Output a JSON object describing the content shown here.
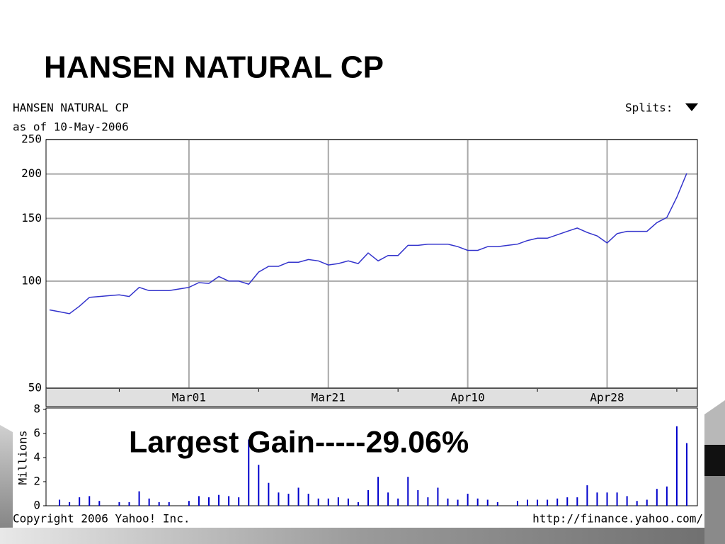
{
  "slide": {
    "title": "HANSEN NATURAL CP",
    "annotation": "Largest Gain-----29.06%"
  },
  "chart_header": {
    "name": "HANSEN NATURAL CP",
    "as_of": "as of 10-May-2006",
    "splits": "Splits:"
  },
  "footer": {
    "copyright": "Copyright 2006 Yahoo! Inc.",
    "url": "http://finance.yahoo.com/"
  },
  "chart_data": [
    {
      "type": "line",
      "categories": [
        null,
        null,
        null,
        null,
        null,
        null,
        null,
        null,
        null,
        null,
        null,
        null,
        null,
        null,
        "Mar01",
        null,
        null,
        null,
        null,
        null,
        null,
        null,
        null,
        null,
        null,
        null,
        null,
        null,
        "Mar21",
        null,
        null,
        null,
        null,
        null,
        null,
        null,
        null,
        null,
        null,
        null,
        null,
        null,
        "Apr10",
        null,
        null,
        null,
        null,
        null,
        null,
        null,
        null,
        null,
        null,
        null,
        null,
        null,
        "Apr28",
        null,
        null,
        null,
        null,
        null,
        null,
        null,
        null
      ],
      "values": [
        83,
        82,
        81,
        85,
        90,
        90.5,
        91,
        91.5,
        90.5,
        96,
        94,
        94,
        94,
        95,
        96,
        99,
        98.5,
        103,
        100,
        100,
        98,
        106,
        110,
        110,
        113,
        113,
        115,
        114,
        111,
        112,
        114,
        112,
        120,
        114,
        118,
        118,
        126,
        126,
        127,
        127,
        127,
        125,
        122,
        122,
        125,
        125,
        126,
        127,
        130,
        132,
        132,
        135,
        138,
        141,
        137,
        134,
        128,
        136,
        138,
        138,
        138,
        146,
        151,
        172,
        201
      ],
      "color": "#3333cc",
      "ylim": [
        50,
        250
      ],
      "yticks": [
        50,
        100,
        150,
        200,
        250
      ],
      "log_scale": true,
      "grid": true
    },
    {
      "type": "bar",
      "ylabel": "Millions",
      "values": [
        null,
        0.5,
        0.3,
        0.7,
        0.8,
        0.4,
        null,
        0.3,
        0.3,
        1.2,
        0.6,
        0.3,
        0.3,
        null,
        0.4,
        0.8,
        0.7,
        0.9,
        0.8,
        0.7,
        5.5,
        3.4,
        1.9,
        1.1,
        1.0,
        1.5,
        1.0,
        0.6,
        0.6,
        0.7,
        0.6,
        0.3,
        1.3,
        2.4,
        1.1,
        0.6,
        2.4,
        1.3,
        0.7,
        1.5,
        0.6,
        0.5,
        1.0,
        0.6,
        0.5,
        0.3,
        null,
        0.4,
        0.5,
        0.5,
        0.5,
        0.6,
        0.7,
        0.7,
        1.7,
        1.1,
        1.1,
        1.1,
        0.8,
        0.4,
        0.5,
        1.4,
        1.6,
        6.6,
        5.2
      ],
      "color": "#0000cc",
      "ylim": [
        0,
        8
      ],
      "yticks": [
        0,
        2,
        4,
        6,
        8
      ]
    }
  ]
}
